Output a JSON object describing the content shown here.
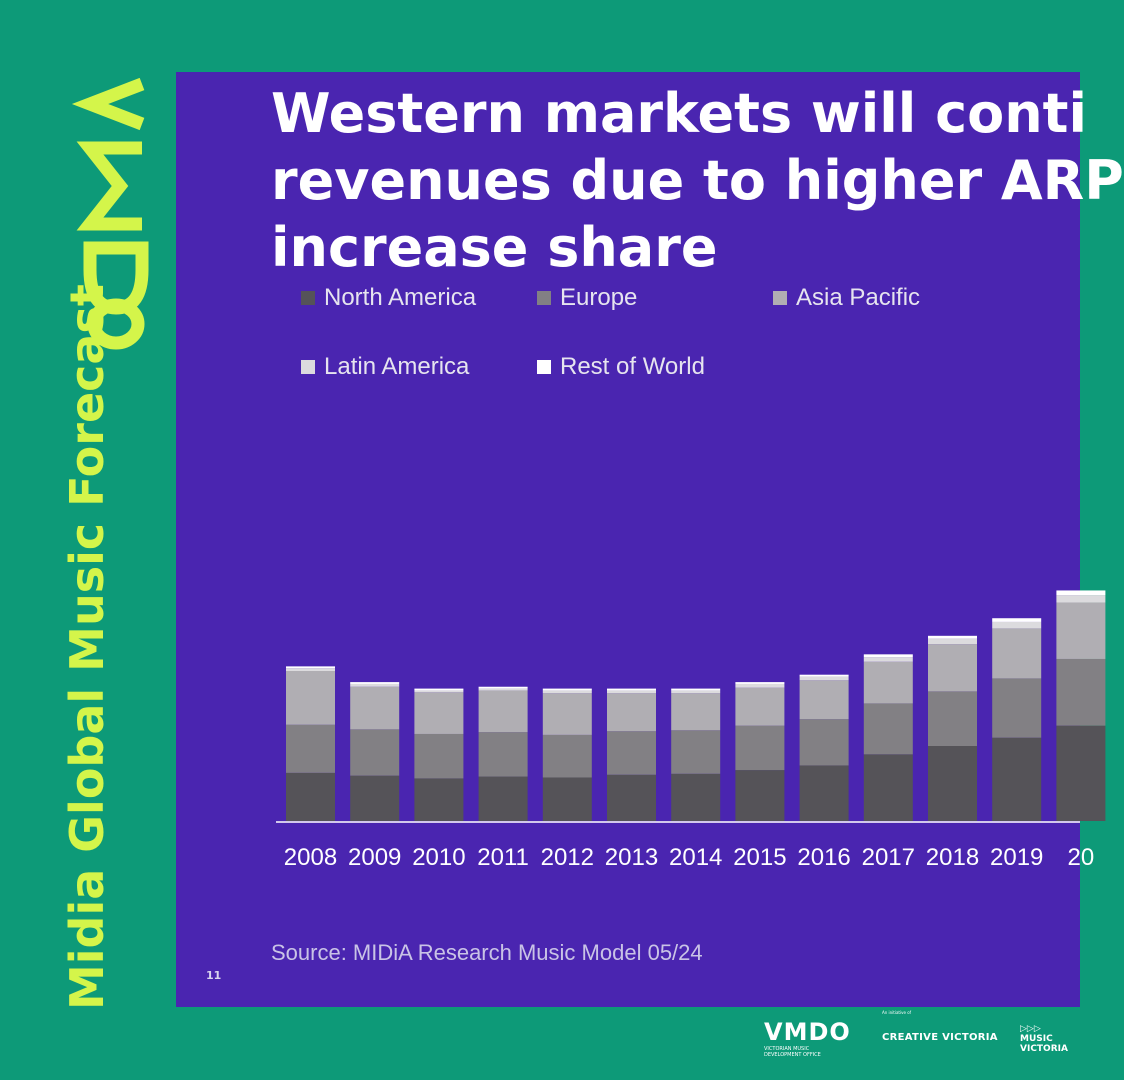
{
  "brand": {
    "logo_text": "VMDO",
    "side_title": "Midia Global Music Forecast",
    "colors": {
      "page_bg": "#0d9a78",
      "slide_bg": "#4a25b0",
      "accent": "#d4f54a"
    }
  },
  "slide": {
    "title_lines": [
      "Western markets will conti",
      "revenues due to higher ARP",
      "increase share"
    ],
    "source": "Source: MIDiA Research Music Model 05/24",
    "page_number": "11"
  },
  "chart_data": {
    "type": "bar",
    "stacked": true,
    "categories": [
      "2008",
      "2009",
      "2010",
      "2011",
      "2012",
      "2013",
      "2014",
      "2015",
      "2016",
      "2017",
      "2018",
      "2019",
      "20"
    ],
    "series": [
      {
        "name": "North America",
        "color": "#555358",
        "values": [
          52,
          49,
          46,
          48,
          47,
          50,
          51,
          55,
          60,
          72,
          81,
          90,
          103
        ]
      },
      {
        "name": "Europe",
        "color": "#828084",
        "values": [
          52,
          50,
          48,
          48,
          46,
          47,
          47,
          48,
          50,
          55,
          59,
          64,
          72
        ]
      },
      {
        "name": "Asia Pacific",
        "color": "#b0aeb3",
        "values": [
          58,
          46,
          45,
          45,
          45,
          41,
          40,
          41,
          42,
          45,
          51,
          54,
          61
        ]
      },
      {
        "name": "Latin America",
        "color": "#dcdbde",
        "values": [
          3,
          3,
          2,
          2,
          3,
          3,
          3,
          4,
          4,
          5,
          6,
          7,
          8
        ]
      },
      {
        "name": "Rest of World",
        "color": "#ffffff",
        "values": [
          2,
          2,
          2,
          2,
          2,
          2,
          2,
          2,
          2,
          3,
          3,
          4,
          5
        ]
      }
    ],
    "title": "",
    "xlabel": "",
    "ylabel": "",
    "ylim": [
      0,
      270
    ],
    "legend": "top"
  },
  "footer": {
    "vmdo": "VMDO",
    "vmdo_sub": "VICTORIAN MUSIC DEVELOPMENT OFFICE",
    "creative_label": "An initiative of",
    "creative_victoria": "CREATIVE VICTORIA",
    "music_victoria_icon": "▷▷▷",
    "music_victoria": "MUSIC VICTORIA"
  }
}
